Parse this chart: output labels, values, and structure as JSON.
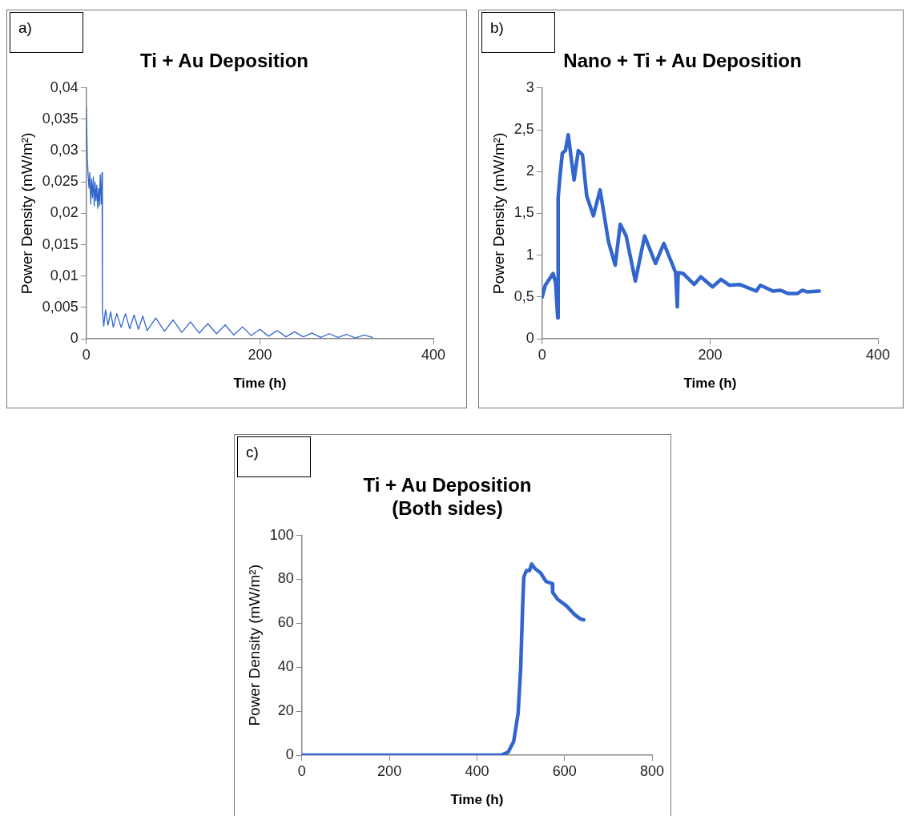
{
  "chart_data": [
    {
      "type": "line",
      "title": "Ti + Au Deposition",
      "xlabel": "Time (h)",
      "ylabel": "Power Density (mW/m²)",
      "annotations": [
        "a)"
      ],
      "color": "#3366cc",
      "marker": "none",
      "line_style": "solid",
      "x": [
        0,
        1,
        2,
        3,
        4,
        5,
        6,
        7,
        8,
        9,
        10,
        11,
        12,
        13,
        14,
        15,
        16,
        17,
        18,
        18.5,
        20,
        22,
        25,
        28,
        31,
        35,
        40,
        45,
        50,
        55,
        60,
        65,
        70,
        80,
        90,
        100,
        110,
        120,
        130,
        140,
        150,
        160,
        170,
        180,
        190,
        200,
        210,
        220,
        230,
        240,
        250,
        260,
        270,
        280,
        290,
        300,
        310,
        320,
        330
      ],
      "values": [
        0.0368,
        0.029,
        0.0262,
        0.024,
        0.0265,
        0.0215,
        0.0255,
        0.0225,
        0.0258,
        0.0212,
        0.025,
        0.022,
        0.0245,
        0.0208,
        0.024,
        0.0212,
        0.0262,
        0.0215,
        0.0265,
        0.0045,
        0.002,
        0.0046,
        0.0022,
        0.0043,
        0.0018,
        0.004,
        0.0018,
        0.004,
        0.0016,
        0.0038,
        0.0015,
        0.0036,
        0.0013,
        0.0033,
        0.0012,
        0.003,
        0.001,
        0.0027,
        0.0009,
        0.0024,
        0.0008,
        0.0022,
        0.0006,
        0.0019,
        0.0005,
        0.0015,
        0.0004,
        0.0013,
        0.0003,
        0.0011,
        0.0003,
        0.0009,
        0.0002,
        0.0008,
        0.0002,
        0.0007,
        0.0001,
        0.0006,
        0.0002
      ],
      "xlim": [
        0,
        400
      ],
      "xticks": [
        0,
        200,
        400
      ],
      "ylim": [
        0,
        0.04
      ],
      "yticks": [
        0,
        {
          "value": 0.005,
          "label": "0,005"
        },
        {
          "value": 0.01,
          "label": "0,01"
        },
        {
          "value": 0.015,
          "label": "0,015"
        },
        {
          "value": 0.02,
          "label": "0,02"
        },
        {
          "value": 0.025,
          "label": "0,025"
        },
        {
          "value": 0.03,
          "label": "0,03"
        },
        {
          "value": 0.035,
          "label": "0,035"
        },
        {
          "value": 0.04,
          "label": "0,04"
        }
      ]
    },
    {
      "type": "line",
      "title": "Nano + Ti + Au Deposition",
      "xlabel": "Time (h)",
      "ylabel": "Power Density (mW/m²)",
      "annotations": [
        "b)"
      ],
      "color": "#3366cc",
      "marker": "none",
      "line_style": "solid",
      "x": [
        0,
        3.7,
        13,
        16,
        18.5,
        19,
        21,
        24,
        27.7,
        31,
        35,
        38,
        43,
        48,
        53,
        61,
        69,
        79,
        87,
        93,
        100,
        111,
        122,
        135,
        145,
        159,
        161,
        162,
        168,
        181,
        189,
        203,
        213,
        223,
        235,
        255,
        260,
        275,
        284,
        293,
        304,
        310,
        316,
        330
      ],
      "values": [
        0.5,
        0.64,
        0.78,
        0.67,
        0.25,
        1.68,
        1.92,
        2.22,
        2.25,
        2.44,
        2.13,
        1.9,
        2.25,
        2.2,
        1.71,
        1.47,
        1.78,
        1.16,
        0.88,
        1.37,
        1.23,
        0.69,
        1.23,
        0.9,
        1.14,
        0.79,
        0.38,
        0.79,
        0.78,
        0.65,
        0.74,
        0.62,
        0.71,
        0.64,
        0.65,
        0.57,
        0.64,
        0.57,
        0.58,
        0.54,
        0.54,
        0.58,
        0.56,
        0.57
      ],
      "xlim": [
        0,
        400
      ],
      "xticks": [
        0,
        200,
        400
      ],
      "ylim": [
        0,
        3
      ],
      "yticks": [
        0,
        {
          "value": 0.5,
          "label": "0,5"
        },
        1,
        {
          "value": 1.5,
          "label": "1,5"
        },
        2,
        {
          "value": 2.5,
          "label": "2,5"
        },
        3
      ]
    },
    {
      "type": "line",
      "title": "Ti + Au Deposition\n(Both sides)",
      "xlabel": "Time (h)",
      "ylabel": "Power Density (mW/m²)",
      "annotations": [
        "c)"
      ],
      "color": "#3366cc",
      "marker": "none",
      "line_style": "solid",
      "x": [
        0,
        455,
        471,
        484,
        494,
        500,
        504,
        507,
        513,
        520,
        525,
        532,
        545,
        558,
        572,
        573,
        584,
        604,
        623,
        636,
        644
      ],
      "values": [
        0,
        0,
        1.3,
        6.3,
        19,
        40,
        66,
        81,
        84,
        84,
        87,
        85,
        83,
        79,
        78,
        74,
        71,
        68,
        64,
        62,
        61.6
      ],
      "xlim": [
        0,
        800
      ],
      "xticks": [
        0,
        200,
        400,
        600,
        800
      ],
      "ylim": [
        0,
        100
      ],
      "yticks": [
        0,
        20,
        40,
        60,
        80,
        100
      ]
    }
  ]
}
